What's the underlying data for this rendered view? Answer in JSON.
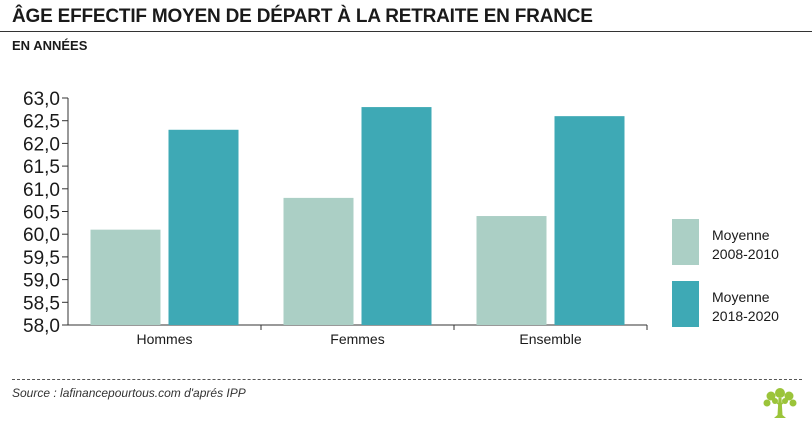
{
  "header": {
    "title": "ÂGE EFFECTIF MOYEN DE DÉPART À LA RETRAITE EN FRANCE",
    "subtitle": "EN ANNÉES"
  },
  "footer": {
    "source": "Source : lafinancepourtous.com d'aprés IPP",
    "logo_icon": "tree-icon"
  },
  "colors": {
    "series_2008_2010": "#abcfc5",
    "series_2018_2020": "#3ea9b5",
    "logo": "#9bc43a"
  },
  "chart_data": {
    "type": "bar",
    "title": "",
    "xlabel": "",
    "ylabel": "",
    "categories": [
      "Hommes",
      "Femmes",
      "Ensemble"
    ],
    "series": [
      {
        "name": "Moyenne 2008-2010",
        "legend_lines": [
          "Moyenne",
          "2008-2010"
        ],
        "values": [
          60.1,
          60.8,
          60.4
        ],
        "color": "#abcfc5"
      },
      {
        "name": "Moyenne 2018-2020",
        "legend_lines": [
          "Moyenne",
          "2018-2020"
        ],
        "values": [
          62.3,
          62.8,
          62.6
        ],
        "color": "#3ea9b5"
      }
    ],
    "ylim": [
      58.0,
      63.0
    ],
    "yticks": [
      "58,0",
      "58,5",
      "59,0",
      "59,5",
      "60,0",
      "60,5",
      "61,0",
      "61,5",
      "62,0",
      "62,5",
      "63,0"
    ],
    "grid": false,
    "legend": "right"
  }
}
